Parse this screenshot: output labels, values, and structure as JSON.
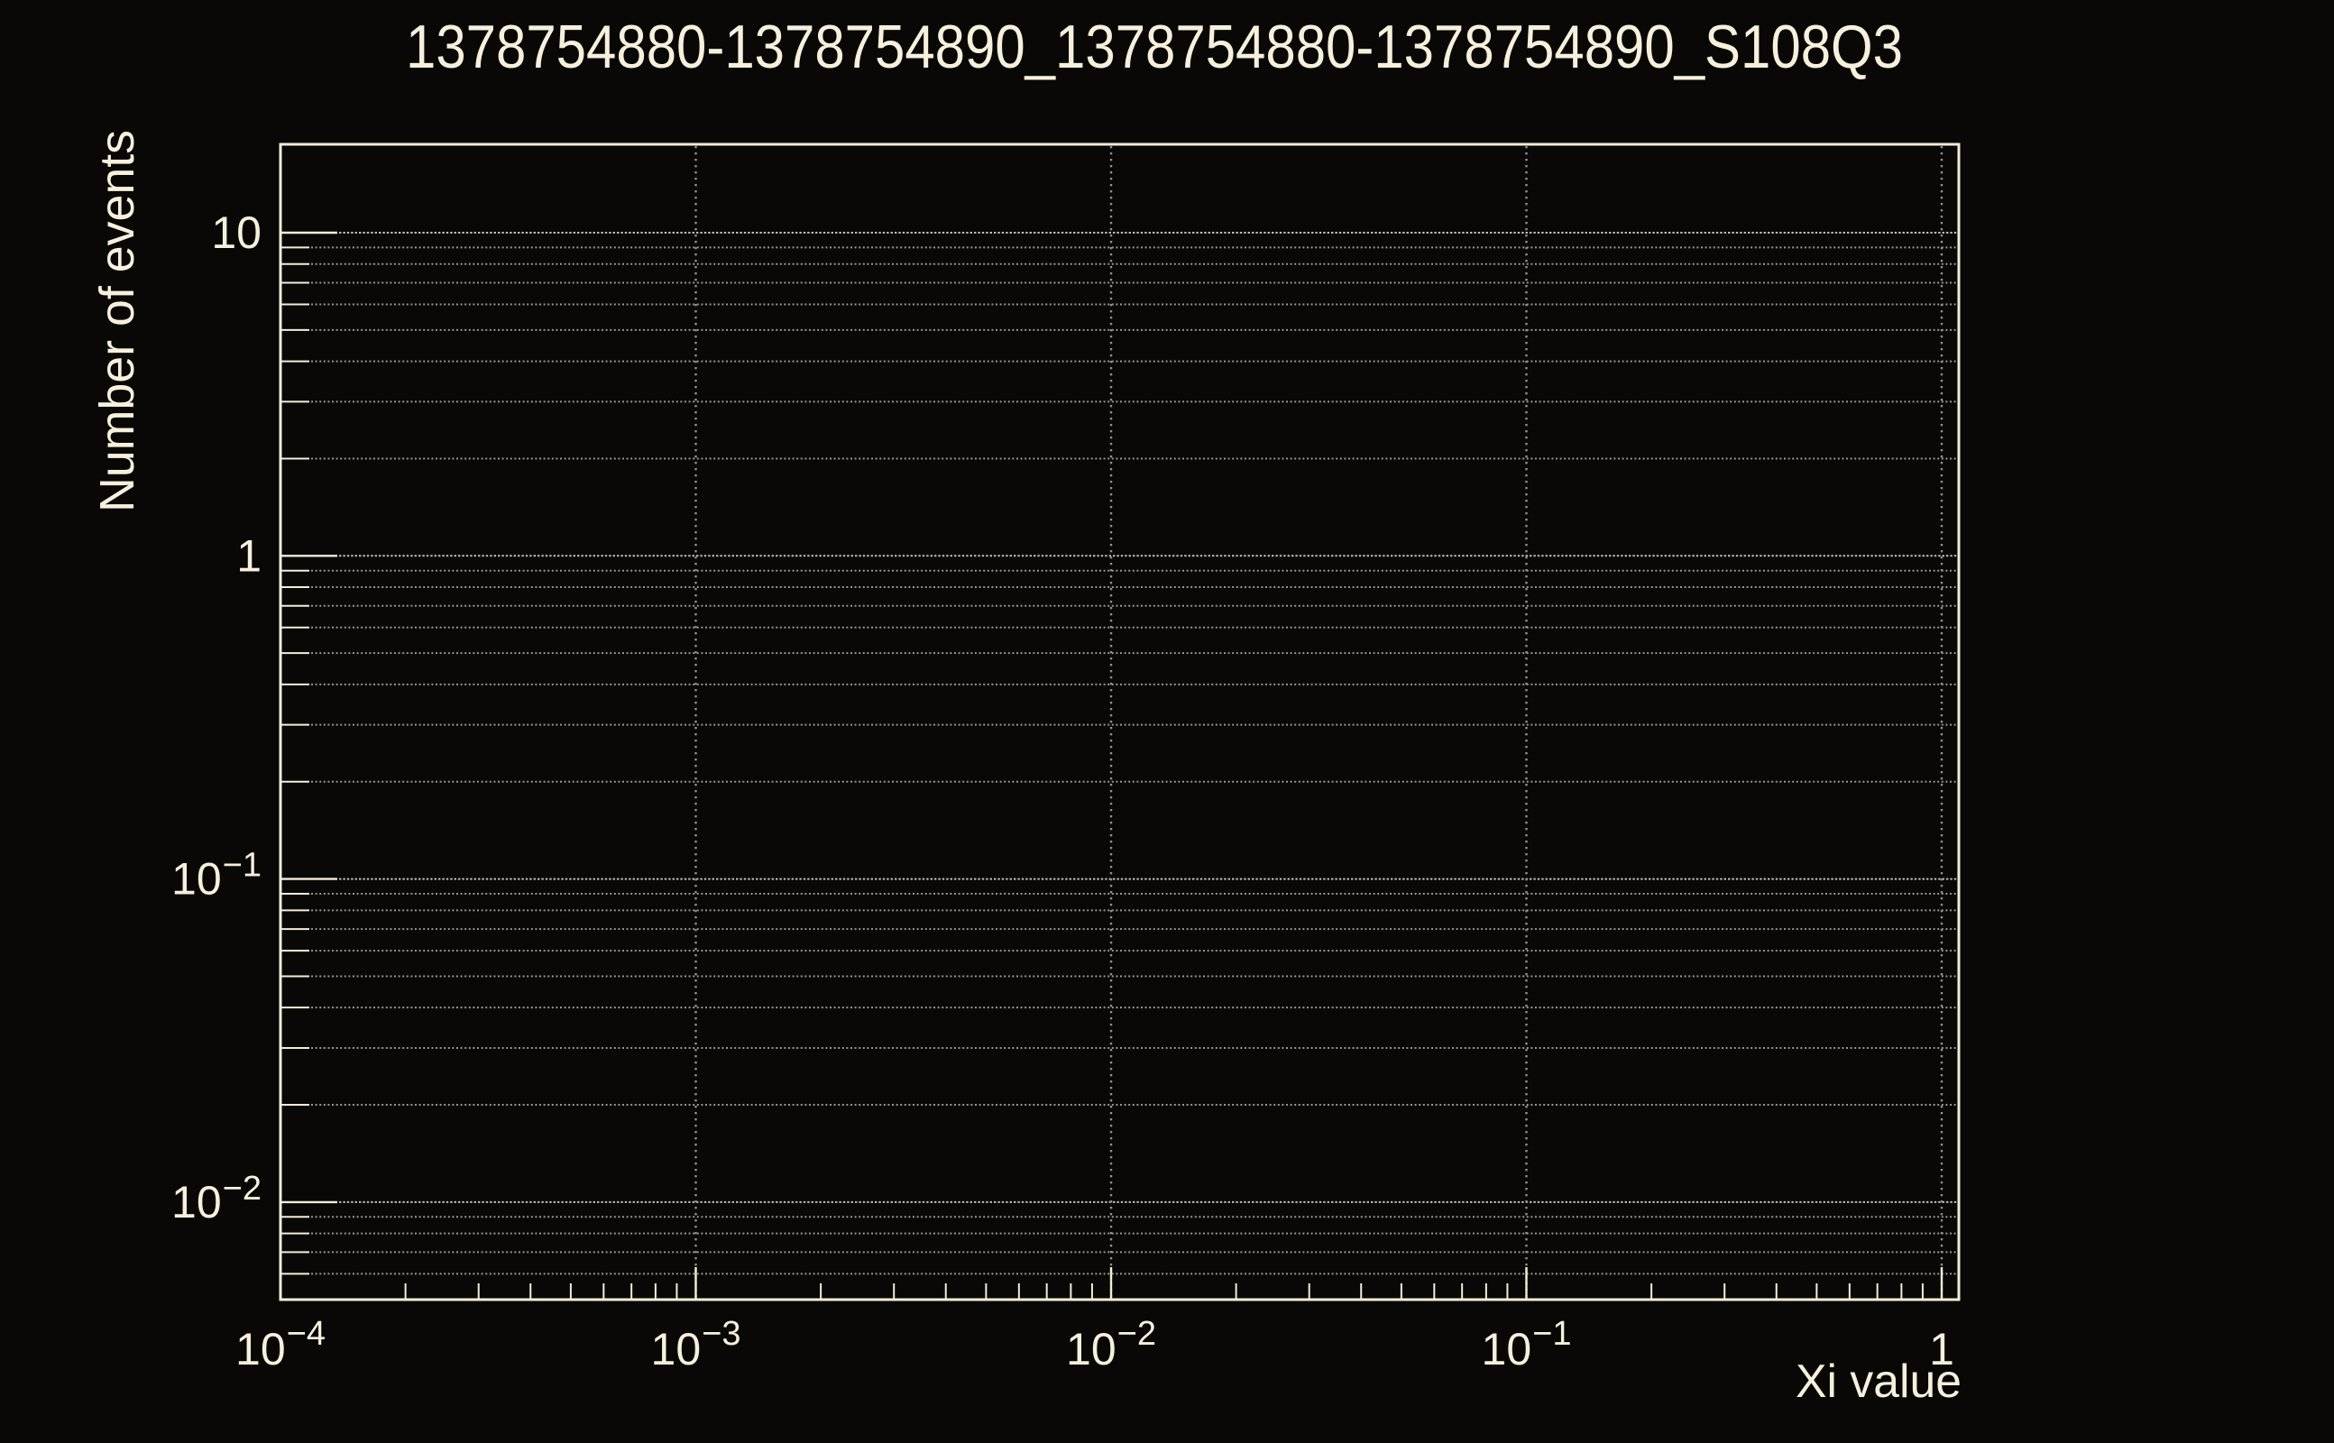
{
  "colors": {
    "background": "#090806",
    "axis": "#f3edd6",
    "text": "#f6f0dc",
    "grid": "#969696",
    "grid_major": "#bdbdbd",
    "grid_vertical": "#8f8f8f"
  },
  "chart_data": {
    "type": "line",
    "title": "1378754880-1378754890_1378754880-1378754890_S108Q3",
    "xlabel": "Xi value",
    "ylabel": "Number of events",
    "x_scale": "log",
    "y_scale": "log",
    "xlim": [
      0.0001,
      1.1
    ],
    "ylim": [
      0.005,
      18.8
    ],
    "grid": true,
    "legend": false,
    "series": [],
    "note": "empty histogram frame - no data points drawn",
    "x_ticks": [
      {
        "value": 0.0001,
        "base": "10",
        "exp": "−4"
      },
      {
        "value": 0.001,
        "base": "10",
        "exp": "−3"
      },
      {
        "value": 0.01,
        "base": "10",
        "exp": "−2"
      },
      {
        "value": 0.1,
        "base": "10",
        "exp": "−1"
      },
      {
        "value": 1,
        "base": "1",
        "exp": ""
      }
    ],
    "y_ticks": [
      {
        "value": 10,
        "base": "10",
        "exp": ""
      },
      {
        "value": 1,
        "base": "1",
        "exp": ""
      },
      {
        "value": 0.1,
        "base": "10",
        "exp": "−1"
      },
      {
        "value": 0.01,
        "base": "10",
        "exp": "−2"
      }
    ],
    "x_minor_ticks": [
      0.0002,
      0.0003,
      0.0004,
      0.0005,
      0.0006,
      0.0007,
      0.0008,
      0.0009,
      0.002,
      0.003,
      0.004,
      0.005,
      0.006,
      0.007,
      0.008,
      0.009,
      0.02,
      0.03,
      0.04,
      0.05,
      0.06,
      0.07,
      0.08,
      0.09,
      0.2,
      0.3,
      0.4,
      0.5,
      0.6,
      0.7,
      0.8,
      0.9
    ],
    "y_minor_ticks": [
      0.006,
      0.007,
      0.008,
      0.009,
      0.02,
      0.03,
      0.04,
      0.05,
      0.06,
      0.07,
      0.08,
      0.09,
      0.2,
      0.3,
      0.4,
      0.5,
      0.6,
      0.7,
      0.8,
      0.9,
      2,
      3,
      4,
      5,
      6,
      7,
      8,
      9
    ]
  }
}
